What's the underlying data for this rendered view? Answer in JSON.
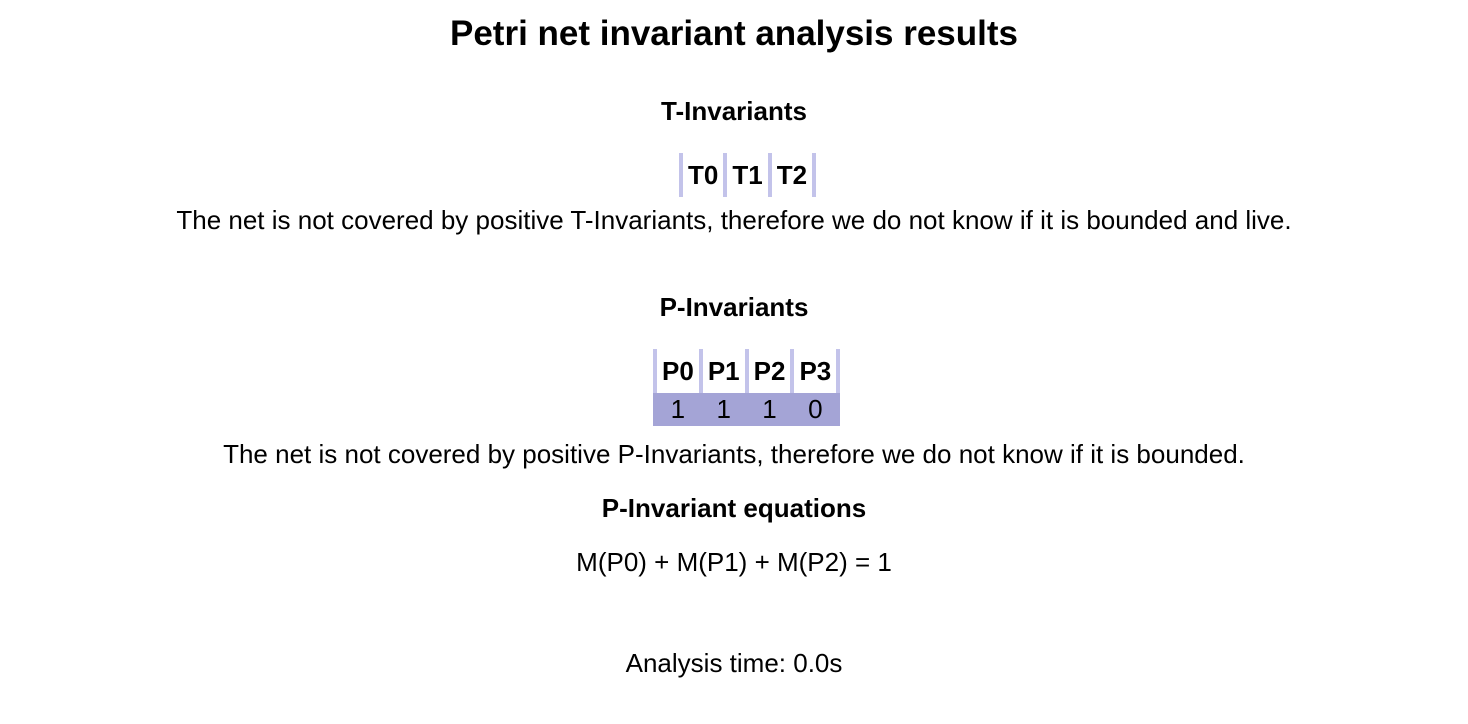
{
  "title": "Petri net invariant analysis results",
  "t_invariants": {
    "heading": "T-Invariants",
    "columns": [
      "T0",
      "T1",
      "T2"
    ],
    "note": "The net is not covered by positive T-Invariants, therefore we do not know if it is bounded and live."
  },
  "p_invariants": {
    "heading": "P-Invariants",
    "columns": [
      "P0",
      "P1",
      "P2",
      "P3"
    ],
    "rows": [
      [
        "1",
        "1",
        "1",
        "0"
      ]
    ],
    "note": "The net is not covered by positive P-Invariants, therefore we do not know if it is bounded."
  },
  "equations": {
    "heading": "P-Invariant equations",
    "items": [
      "M(P0) + M(P1) + M(P2) = 1"
    ]
  },
  "analysis_time": "Analysis time: 0.0s",
  "colors": {
    "header_border": "#c3c3ea",
    "row_fill": "#a4a4d6"
  }
}
